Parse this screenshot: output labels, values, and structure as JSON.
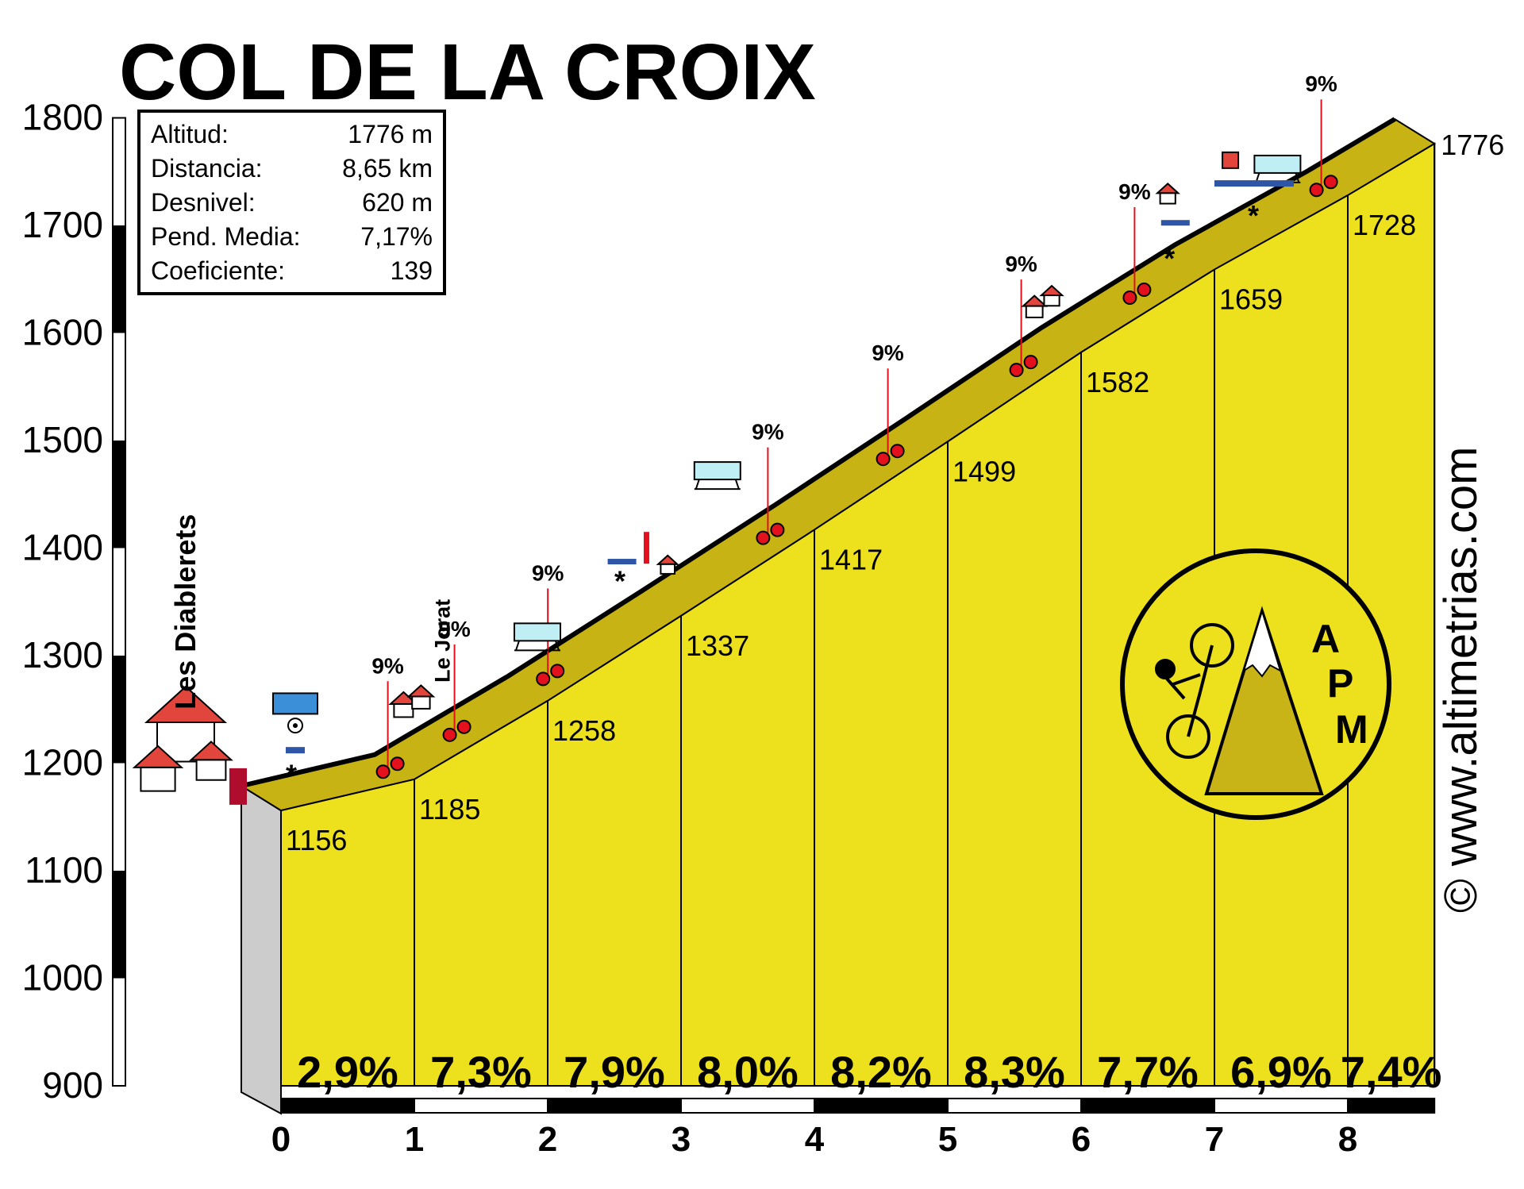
{
  "chart_data": {
    "type": "area",
    "title": "COL DE LA CROIX",
    "ylim": [
      900,
      1800
    ],
    "yticks": [
      900,
      1000,
      1100,
      1200,
      1300,
      1400,
      1500,
      1600,
      1700,
      1800
    ],
    "xlim": [
      0,
      8.65
    ],
    "xticks": [
      0,
      1,
      2,
      3,
      4,
      5,
      6,
      7,
      8
    ],
    "profile": {
      "x": [
        0,
        1,
        2,
        3,
        4,
        5,
        6,
        7,
        8,
        8.65
      ],
      "y": [
        1156,
        1185,
        1258,
        1337,
        1417,
        1499,
        1582,
        1659,
        1728,
        1776
      ]
    },
    "altitude_labels": [
      "1156",
      "1185",
      "1258",
      "1337",
      "1417",
      "1499",
      "1582",
      "1659",
      "1728",
      "1776"
    ],
    "segment_gradients": [
      "2,9%",
      "7,3%",
      "7,9%",
      "8,0%",
      "8,2%",
      "8,3%",
      "7,7%",
      "6,9%",
      "7,4%"
    ],
    "max_gradients": [
      {
        "x": 0.95,
        "label": "9%"
      },
      {
        "x": 1.45,
        "label": "9%"
      },
      {
        "x": 2.15,
        "label": "9%"
      },
      {
        "x": 3.8,
        "label": "9%"
      },
      {
        "x": 4.7,
        "label": "9%"
      },
      {
        "x": 5.7,
        "label": "9%"
      },
      {
        "x": 6.55,
        "label": "9%"
      },
      {
        "x": 7.95,
        "label": "9%"
      }
    ],
    "places": [
      {
        "x": 0,
        "label": "Les Diablerets"
      },
      {
        "x": 1.05,
        "label": "Le Jorat"
      }
    ],
    "grid": false,
    "legend": "none"
  },
  "info_box": {
    "rows": [
      {
        "label": "Altitud:",
        "value": "1776 m"
      },
      {
        "label": "Distancia:",
        "value": "8,65 km"
      },
      {
        "label": "Desnivel:",
        "value": "620 m"
      },
      {
        "label": "Pend. Media:",
        "value": "7,17%"
      },
      {
        "label": "Coeficiente:",
        "value": "139"
      }
    ]
  },
  "logo": {
    "letters": [
      "A",
      "P",
      "M"
    ]
  },
  "credit": "© www.altimetrias.com",
  "colors": {
    "fill": "#ede11e",
    "ribbon": "#c7b414",
    "side": "#cccccc",
    "marker": "#e3101e",
    "roof": "#e2453c",
    "arrow": "#2e55a6"
  }
}
